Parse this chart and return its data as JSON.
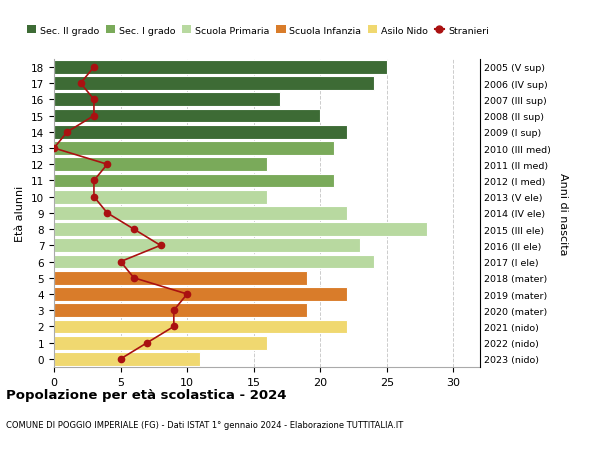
{
  "ages": [
    18,
    17,
    16,
    15,
    14,
    13,
    12,
    11,
    10,
    9,
    8,
    7,
    6,
    5,
    4,
    3,
    2,
    1,
    0
  ],
  "bar_values": [
    25,
    24,
    17,
    20,
    22,
    21,
    16,
    21,
    16,
    22,
    28,
    23,
    24,
    19,
    22,
    19,
    22,
    16,
    11
  ],
  "bar_colors": [
    "#3d6b35",
    "#3d6b35",
    "#3d6b35",
    "#3d6b35",
    "#3d6b35",
    "#7aaa5a",
    "#7aaa5a",
    "#7aaa5a",
    "#b8d9a0",
    "#b8d9a0",
    "#b8d9a0",
    "#b8d9a0",
    "#b8d9a0",
    "#d97c2a",
    "#d97c2a",
    "#d97c2a",
    "#f0d870",
    "#f0d870",
    "#f0d870"
  ],
  "stranieri_values": [
    3,
    2,
    3,
    3,
    1,
    0,
    4,
    3,
    3,
    4,
    6,
    8,
    5,
    6,
    10,
    9,
    9,
    7,
    5
  ],
  "right_labels": [
    "2005 (V sup)",
    "2006 (IV sup)",
    "2007 (III sup)",
    "2008 (II sup)",
    "2009 (I sup)",
    "2010 (III med)",
    "2011 (II med)",
    "2012 (I med)",
    "2013 (V ele)",
    "2014 (IV ele)",
    "2015 (III ele)",
    "2016 (II ele)",
    "2017 (I ele)",
    "2018 (mater)",
    "2019 (mater)",
    "2020 (mater)",
    "2021 (nido)",
    "2022 (nido)",
    "2023 (nido)"
  ],
  "legend_labels": [
    "Sec. II grado",
    "Sec. I grado",
    "Scuola Primaria",
    "Scuola Infanzia",
    "Asilo Nido",
    "Stranieri"
  ],
  "legend_colors": [
    "#3d6b35",
    "#7aaa5a",
    "#b8d9a0",
    "#d97c2a",
    "#f0d870",
    "#cc0000"
  ],
  "ylabel": "Età alunni",
  "right_ylabel": "Anni di nascita",
  "title": "Popolazione per età scolastica - 2024",
  "subtitle": "COMUNE DI POGGIO IMPERIALE (FG) - Dati ISTAT 1° gennaio 2024 - Elaborazione TUTTITALIA.IT",
  "xlim": [
    0,
    32
  ],
  "ylim": [
    -0.5,
    18.5
  ],
  "xticks": [
    0,
    5,
    10,
    15,
    20,
    25,
    30
  ],
  "bar_height": 0.85,
  "stranieri_color": "#aa1111",
  "grid_color": "#cccccc",
  "bg_color": "#ffffff"
}
